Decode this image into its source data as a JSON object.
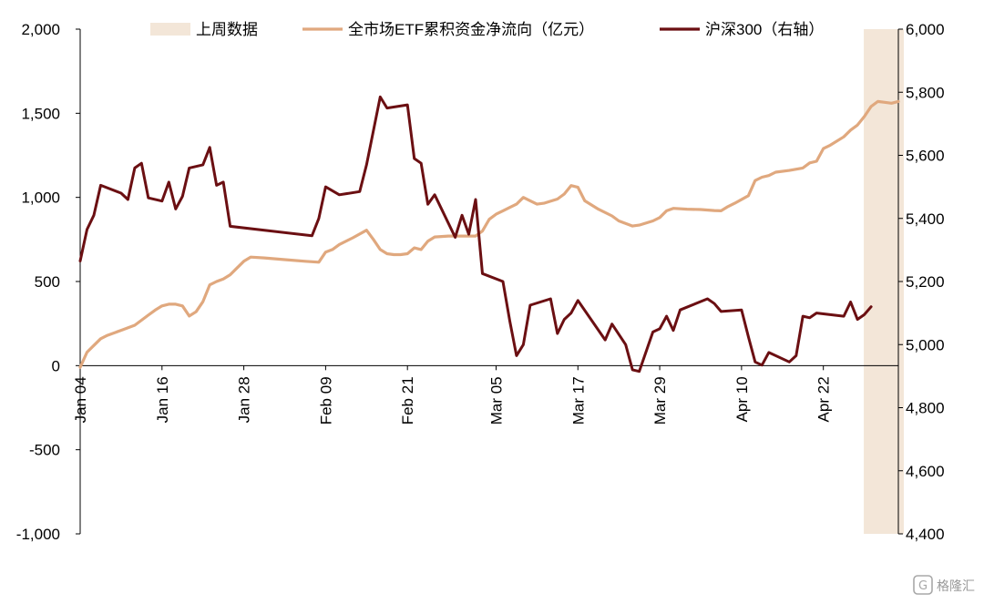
{
  "chart_data": {
    "type": "line",
    "legend": [
      {
        "label": "上周数据",
        "color": "#f3e6d8"
      },
      {
        "label": "全市场ETF累积资金净流向（亿元）",
        "color": "#e0a87e"
      },
      {
        "label": "沪深300（右轴）",
        "color": "#6b0f12"
      }
    ],
    "x_ticks": [
      "Jan 04",
      "Jan 16",
      "Jan 28",
      "Feb 09",
      "Feb 21",
      "Mar 05",
      "Mar 17",
      "Mar 29",
      "Apr 10",
      "Apr 22"
    ],
    "x_domain": [
      "2024-01-04",
      "2024-05-03"
    ],
    "y_left": {
      "min": -1000,
      "max": 2000,
      "ticks": [
        "2,000",
        "1,500",
        "1,000",
        "500",
        "0",
        "-500",
        "-1,000"
      ]
    },
    "y_right": {
      "min": 4400,
      "max": 6000,
      "ticks": [
        "6,000",
        "5,800",
        "5,600",
        "5,400",
        "5,200",
        "5,000",
        "4,800",
        "4,600",
        "4,400"
      ]
    },
    "highlight": {
      "from": "2024-04-29",
      "to": "2024-05-03"
    },
    "series": [
      {
        "name": "全市场ETF累积资金净流向（亿元）",
        "axis": "left",
        "color": "#e0a87e",
        "points": [
          [
            "2024-01-04",
            -10
          ],
          [
            "2024-01-05",
            80
          ],
          [
            "2024-01-06",
            120
          ],
          [
            "2024-01-07",
            160
          ],
          [
            "2024-01-08",
            180
          ],
          [
            "2024-01-10",
            210
          ],
          [
            "2024-01-12",
            240
          ],
          [
            "2024-01-13",
            270
          ],
          [
            "2024-01-14",
            300
          ],
          [
            "2024-01-15",
            330
          ],
          [
            "2024-01-16",
            355
          ],
          [
            "2024-01-17",
            365
          ],
          [
            "2024-01-18",
            365
          ],
          [
            "2024-01-19",
            355
          ],
          [
            "2024-01-20",
            295
          ],
          [
            "2024-01-21",
            320
          ],
          [
            "2024-01-22",
            380
          ],
          [
            "2024-01-23",
            480
          ],
          [
            "2024-01-24",
            500
          ],
          [
            "2024-01-25",
            515
          ],
          [
            "2024-01-26",
            540
          ],
          [
            "2024-01-27",
            580
          ],
          [
            "2024-01-28",
            620
          ],
          [
            "2024-01-29",
            645
          ],
          [
            "2024-01-31",
            640
          ],
          [
            "2024-02-03",
            630
          ],
          [
            "2024-02-06",
            620
          ],
          [
            "2024-02-08",
            615
          ],
          [
            "2024-02-09",
            675
          ],
          [
            "2024-02-10",
            690
          ],
          [
            "2024-02-11",
            720
          ],
          [
            "2024-02-13",
            760
          ],
          [
            "2024-02-15",
            805
          ],
          [
            "2024-02-16",
            750
          ],
          [
            "2024-02-17",
            690
          ],
          [
            "2024-02-18",
            665
          ],
          [
            "2024-02-19",
            660
          ],
          [
            "2024-02-20",
            660
          ],
          [
            "2024-02-21",
            665
          ],
          [
            "2024-02-22",
            700
          ],
          [
            "2024-02-23",
            690
          ],
          [
            "2024-02-24",
            740
          ],
          [
            "2024-02-25",
            765
          ],
          [
            "2024-02-27",
            770
          ],
          [
            "2024-02-29",
            770
          ],
          [
            "2024-03-02",
            770
          ],
          [
            "2024-03-03",
            800
          ],
          [
            "2024-03-04",
            870
          ],
          [
            "2024-03-05",
            900
          ],
          [
            "2024-03-06",
            920
          ],
          [
            "2024-03-07",
            940
          ],
          [
            "2024-03-08",
            960
          ],
          [
            "2024-03-09",
            1000
          ],
          [
            "2024-03-10",
            980
          ],
          [
            "2024-03-11",
            960
          ],
          [
            "2024-03-12",
            965
          ],
          [
            "2024-03-14",
            990
          ],
          [
            "2024-03-15",
            1020
          ],
          [
            "2024-03-16",
            1070
          ],
          [
            "2024-03-17",
            1060
          ],
          [
            "2024-03-18",
            980
          ],
          [
            "2024-03-20",
            930
          ],
          [
            "2024-03-22",
            890
          ],
          [
            "2024-03-23",
            860
          ],
          [
            "2024-03-25",
            830
          ],
          [
            "2024-03-26",
            835
          ],
          [
            "2024-03-28",
            860
          ],
          [
            "2024-03-29",
            880
          ],
          [
            "2024-03-30",
            920
          ],
          [
            "2024-03-31",
            935
          ],
          [
            "2024-04-02",
            930
          ],
          [
            "2024-04-04",
            928
          ],
          [
            "2024-04-06",
            922
          ],
          [
            "2024-04-07",
            920
          ],
          [
            "2024-04-08",
            945
          ],
          [
            "2024-04-09",
            965
          ],
          [
            "2024-04-11",
            1010
          ],
          [
            "2024-04-12",
            1100
          ],
          [
            "2024-04-13",
            1120
          ],
          [
            "2024-04-14",
            1130
          ],
          [
            "2024-04-15",
            1150
          ],
          [
            "2024-04-17",
            1160
          ],
          [
            "2024-04-19",
            1175
          ],
          [
            "2024-04-20",
            1205
          ],
          [
            "2024-04-21",
            1215
          ],
          [
            "2024-04-22",
            1290
          ],
          [
            "2024-04-23",
            1310
          ],
          [
            "2024-04-25",
            1360
          ],
          [
            "2024-04-26",
            1400
          ],
          [
            "2024-04-27",
            1430
          ],
          [
            "2024-04-28",
            1480
          ],
          [
            "2024-04-29",
            1540
          ],
          [
            "2024-04-30",
            1570
          ],
          [
            "2024-05-01",
            1565
          ],
          [
            "2024-05-02",
            1560
          ],
          [
            "2024-05-03",
            1570
          ]
        ]
      },
      {
        "name": "沪深300（右轴）",
        "axis": "right",
        "color": "#6b0f12",
        "points": [
          [
            "2024-01-04",
            5265
          ],
          [
            "2024-01-05",
            5365
          ],
          [
            "2024-01-06",
            5410
          ],
          [
            "2024-01-07",
            5505
          ],
          [
            "2024-01-10",
            5480
          ],
          [
            "2024-01-11",
            5460
          ],
          [
            "2024-01-12",
            5560
          ],
          [
            "2024-01-13",
            5575
          ],
          [
            "2024-01-14",
            5465
          ],
          [
            "2024-01-16",
            5455
          ],
          [
            "2024-01-17",
            5515
          ],
          [
            "2024-01-18",
            5430
          ],
          [
            "2024-01-19",
            5470
          ],
          [
            "2024-01-20",
            5560
          ],
          [
            "2024-01-22",
            5570
          ],
          [
            "2024-01-23",
            5625
          ],
          [
            "2024-01-24",
            5505
          ],
          [
            "2024-01-25",
            5515
          ],
          [
            "2024-01-26",
            5375
          ],
          [
            "2024-02-07",
            5345
          ],
          [
            "2024-02-08",
            5400
          ],
          [
            "2024-02-09",
            5500
          ],
          [
            "2024-02-11",
            5475
          ],
          [
            "2024-02-14",
            5485
          ],
          [
            "2024-02-15",
            5570
          ],
          [
            "2024-02-17",
            5785
          ],
          [
            "2024-02-18",
            5750
          ],
          [
            "2024-02-21",
            5760
          ],
          [
            "2024-02-22",
            5590
          ],
          [
            "2024-02-23",
            5575
          ],
          [
            "2024-02-24",
            5445
          ],
          [
            "2024-02-25",
            5475
          ],
          [
            "2024-02-28",
            5340
          ],
          [
            "2024-02-29",
            5410
          ],
          [
            "2024-03-01",
            5350
          ],
          [
            "2024-03-02",
            5460
          ],
          [
            "2024-03-03",
            5225
          ],
          [
            "2024-03-06",
            5200
          ],
          [
            "2024-03-07",
            5075
          ],
          [
            "2024-03-08",
            4965
          ],
          [
            "2024-03-09",
            5000
          ],
          [
            "2024-03-10",
            5125
          ],
          [
            "2024-03-13",
            5145
          ],
          [
            "2024-03-14",
            5035
          ],
          [
            "2024-03-15",
            5080
          ],
          [
            "2024-03-16",
            5100
          ],
          [
            "2024-03-17",
            5140
          ],
          [
            "2024-03-21",
            5015
          ],
          [
            "2024-03-22",
            5065
          ],
          [
            "2024-03-24",
            5000
          ],
          [
            "2024-03-25",
            4920
          ],
          [
            "2024-03-26",
            4915
          ],
          [
            "2024-03-28",
            5040
          ],
          [
            "2024-03-29",
            5050
          ],
          [
            "2024-03-30",
            5090
          ],
          [
            "2024-03-31",
            5045
          ],
          [
            "2024-04-01",
            5110
          ],
          [
            "2024-04-05",
            5145
          ],
          [
            "2024-04-06",
            5130
          ],
          [
            "2024-04-07",
            5105
          ],
          [
            "2024-04-10",
            5110
          ],
          [
            "2024-04-11",
            5025
          ],
          [
            "2024-04-12",
            4945
          ],
          [
            "2024-04-13",
            4935
          ],
          [
            "2024-04-14",
            4975
          ],
          [
            "2024-04-17",
            4945
          ],
          [
            "2024-04-18",
            4965
          ],
          [
            "2024-04-19",
            5090
          ],
          [
            "2024-04-20",
            5085
          ],
          [
            "2024-04-21",
            5100
          ],
          [
            "2024-04-23",
            5095
          ],
          [
            "2024-04-25",
            5090
          ],
          [
            "2024-04-26",
            5135
          ],
          [
            "2024-04-27",
            5080
          ],
          [
            "2024-04-28",
            5095
          ],
          [
            "2024-04-29",
            5120
          ]
        ]
      }
    ]
  },
  "watermark": "格隆汇"
}
